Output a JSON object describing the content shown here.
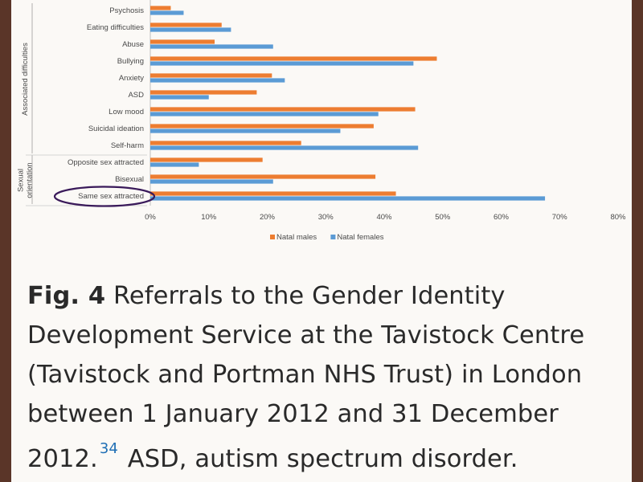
{
  "chart_data": {
    "type": "bar",
    "orientation": "horizontal",
    "categories": [
      "Psychosis",
      "Eating difficulties",
      "Abuse",
      "Bullying",
      "Anxiety",
      "ASD",
      "Low mood",
      "Suicidal ideation",
      "Self-harm",
      "Opposite sex attracted",
      "Bisexual",
      "Same sex attracted"
    ],
    "groups": [
      {
        "label": "Associated difficulties",
        "categories": [
          "Psychosis",
          "Eating difficulties",
          "Abuse",
          "Bullying",
          "Anxiety",
          "ASD",
          "Low mood",
          "Suicidal ideation",
          "Self-harm"
        ]
      },
      {
        "label": "Sexual orientation",
        "categories": [
          "Opposite sex attracted",
          "Bisexual",
          "Same sex attracted"
        ]
      }
    ],
    "series": [
      {
        "name": "Natal males",
        "color": "#ed7d31",
        "values": [
          3.5,
          12.2,
          11.0,
          49.0,
          20.8,
          18.2,
          45.3,
          38.2,
          25.8,
          19.2,
          38.5,
          42.0
        ]
      },
      {
        "name": "Natal females",
        "color": "#5b9bd5",
        "values": [
          5.7,
          13.8,
          21.0,
          45.0,
          23.0,
          10.0,
          39.0,
          32.5,
          45.8,
          8.3,
          21.0,
          67.5
        ]
      }
    ],
    "xlim": [
      0,
      80
    ],
    "xticks": [
      "0%",
      "10%",
      "20%",
      "30%",
      "40%",
      "50%",
      "60%",
      "70%",
      "80%"
    ],
    "legend": "bottom",
    "highlight": "Same sex attracted"
  },
  "caption": {
    "fig_label": "Fig. 4",
    "text_line1": " Referrals to the Gender Identity",
    "text_line2": "Development Service at the Tavistock Centre",
    "text_line3": "(Tavistock and Portman NHS Trust) in London",
    "text_line4": "between 1 January 2012 and 31 December",
    "text_line5a": "2012.",
    "ref": "34",
    "text_line5b": " ASD, autism spectrum disorder."
  }
}
